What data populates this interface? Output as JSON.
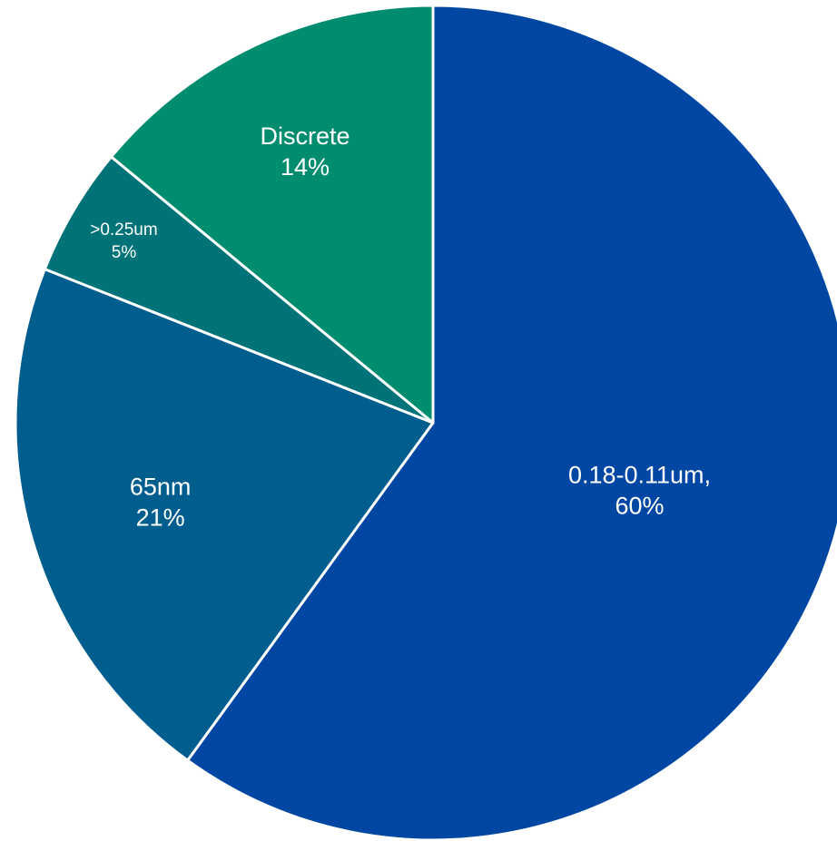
{
  "chart_data": {
    "type": "pie",
    "title": "",
    "legend": "none",
    "start_angle_deg": 0,
    "direction": "clockwise",
    "slices": [
      {
        "name": "0.18-0.11um,",
        "value": 60,
        "percent_label": "60%",
        "color": "#0047A3"
      },
      {
        "name": "65nm",
        "value": 21,
        "percent_label": "21%",
        "color": "#005E8F"
      },
      {
        "name": ">0.25um",
        "value": 5,
        "percent_label": "5%",
        "color": "#007378"
      },
      {
        "name": "Discrete",
        "value": 14,
        "percent_label": "14%",
        "color": "#008C6E"
      }
    ]
  }
}
